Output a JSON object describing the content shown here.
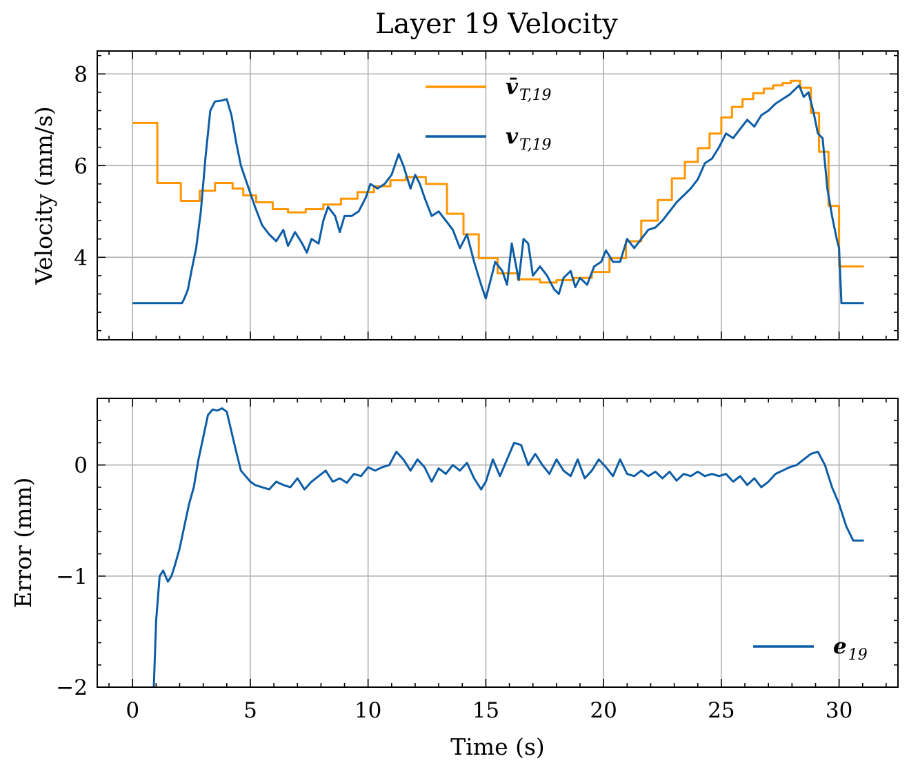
{
  "chart_data": [
    {
      "type": "line",
      "title": "Layer 19 Velocity",
      "xlabel": "",
      "ylabel": "Velocity (mm/s)",
      "xlim": [
        -1.5,
        32.5
      ],
      "ylim": [
        2.2,
        8.5
      ],
      "xticks": [
        0,
        5,
        10,
        15,
        20,
        25,
        30
      ],
      "yticks": [
        4,
        6,
        8
      ],
      "ytick_labels": [
        "4",
        "6",
        "8"
      ],
      "grid": true,
      "legend_position": "top-center",
      "series": [
        {
          "name": "v̄_{T,19}",
          "legend_main": "v̄",
          "legend_sub": "T,19",
          "color": "#ff9500",
          "style": "step",
          "x": [
            0,
            1.05,
            2.05,
            2.85,
            3.5,
            4.25,
            4.7,
            5.25,
            5.95,
            6.6,
            7.35,
            8.1,
            8.85,
            9.55,
            10.25,
            10.95,
            11.6,
            12.45,
            13.35,
            14.05,
            14.7,
            15.5,
            16.35,
            17.3,
            18.0,
            18.75,
            19.5,
            20.25,
            20.95,
            21.6,
            22.3,
            22.9,
            23.45,
            24.0,
            24.5,
            25.0,
            25.45,
            25.9,
            26.35,
            26.8,
            27.2,
            27.6,
            27.95,
            28.35,
            28.8,
            29.15,
            29.55,
            30.0,
            31.05
          ],
          "values": [
            6.93,
            5.62,
            5.23,
            5.45,
            5.62,
            5.5,
            5.35,
            5.2,
            5.05,
            4.98,
            5.05,
            5.15,
            5.28,
            5.42,
            5.55,
            5.68,
            5.75,
            5.6,
            4.95,
            4.5,
            3.98,
            3.65,
            3.52,
            3.45,
            3.5,
            3.55,
            3.68,
            3.98,
            4.35,
            4.8,
            5.25,
            5.72,
            6.08,
            6.38,
            6.7,
            7.05,
            7.28,
            7.45,
            7.58,
            7.68,
            7.75,
            7.8,
            7.85,
            7.7,
            7.15,
            6.3,
            5.12,
            3.8,
            3.8
          ]
        },
        {
          "name": "v_{T,19}",
          "legend_main": "v",
          "legend_sub": "T,19",
          "color": "#0c5da5",
          "style": "line",
          "x": [
            0,
            2.1,
            2.2,
            2.35,
            2.5,
            2.7,
            2.9,
            3.1,
            3.3,
            3.5,
            3.8,
            4.0,
            4.2,
            4.4,
            4.6,
            4.8,
            5.0,
            5.2,
            5.5,
            5.8,
            6.1,
            6.4,
            6.6,
            6.9,
            7.2,
            7.4,
            7.6,
            7.9,
            8.1,
            8.3,
            8.6,
            8.8,
            9.0,
            9.3,
            9.6,
            9.9,
            10.1,
            10.4,
            10.7,
            11.0,
            11.3,
            11.5,
            11.8,
            12.0,
            12.2,
            12.4,
            12.7,
            13.0,
            13.3,
            13.6,
            13.9,
            14.2,
            14.5,
            14.8,
            15.0,
            15.2,
            15.4,
            15.7,
            15.9,
            16.1,
            16.4,
            16.6,
            16.8,
            17.0,
            17.3,
            17.6,
            17.9,
            18.1,
            18.3,
            18.6,
            18.8,
            19.0,
            19.3,
            19.6,
            19.9,
            20.1,
            20.4,
            20.7,
            21.0,
            21.3,
            21.6,
            21.9,
            22.2,
            22.5,
            22.8,
            23.1,
            23.4,
            23.7,
            24.0,
            24.3,
            24.6,
            24.9,
            25.2,
            25.5,
            25.8,
            26.1,
            26.4,
            26.7,
            27.0,
            27.3,
            27.6,
            27.9,
            28.1,
            28.3,
            28.5,
            28.7,
            28.9,
            29.1,
            29.3,
            29.5,
            29.7,
            29.9,
            30.0,
            30.1,
            31.05
          ],
          "values": [
            3.0,
            3.0,
            3.1,
            3.3,
            3.7,
            4.2,
            5.0,
            6.2,
            7.2,
            7.4,
            7.42,
            7.45,
            7.1,
            6.5,
            6.0,
            5.7,
            5.4,
            5.1,
            4.7,
            4.5,
            4.35,
            4.6,
            4.25,
            4.55,
            4.3,
            4.1,
            4.4,
            4.3,
            4.8,
            5.1,
            4.9,
            4.55,
            4.9,
            4.9,
            5.0,
            5.3,
            5.6,
            5.5,
            5.6,
            5.8,
            6.25,
            6.0,
            5.5,
            5.8,
            5.6,
            5.3,
            4.9,
            5.0,
            4.8,
            4.6,
            4.2,
            4.5,
            3.9,
            3.4,
            3.1,
            3.5,
            3.9,
            3.7,
            3.4,
            4.3,
            3.5,
            4.4,
            4.3,
            3.6,
            3.8,
            3.6,
            3.3,
            3.2,
            3.55,
            3.7,
            3.35,
            3.55,
            3.4,
            3.8,
            3.9,
            4.15,
            3.9,
            3.9,
            4.4,
            4.2,
            4.4,
            4.6,
            4.65,
            4.8,
            5.0,
            5.2,
            5.35,
            5.5,
            5.7,
            6.05,
            6.15,
            6.4,
            6.7,
            6.6,
            6.8,
            7.0,
            6.85,
            7.1,
            7.2,
            7.35,
            7.45,
            7.55,
            7.65,
            7.75,
            7.5,
            7.6,
            7.2,
            6.7,
            6.6,
            5.5,
            4.9,
            4.4,
            4.2,
            3.0,
            3.0
          ]
        }
      ]
    },
    {
      "type": "line",
      "title": "",
      "xlabel": "Time (s)",
      "ylabel": "Error (mm)",
      "xlim": [
        -1.5,
        32.5
      ],
      "ylim": [
        -2.0,
        0.6
      ],
      "xticks": [
        0,
        5,
        10,
        15,
        20,
        25,
        30
      ],
      "xtick_labels": [
        "0",
        "5",
        "10",
        "15",
        "20",
        "25",
        "30"
      ],
      "yticks": [
        -2,
        -1,
        0
      ],
      "ytick_labels": [
        "−2",
        "−1",
        "0"
      ],
      "grid": true,
      "legend_position": "lower-right",
      "series": [
        {
          "name": "e_{19}",
          "legend_main": "e",
          "legend_sub": "19",
          "color": "#0c5da5",
          "style": "line",
          "x": [
            0.9,
            1.0,
            1.15,
            1.3,
            1.5,
            1.65,
            1.8,
            2.0,
            2.2,
            2.4,
            2.6,
            2.8,
            3.0,
            3.2,
            3.4,
            3.6,
            3.8,
            4.0,
            4.2,
            4.4,
            4.6,
            4.8,
            5.0,
            5.2,
            5.5,
            5.8,
            6.1,
            6.4,
            6.7,
            7.0,
            7.3,
            7.6,
            7.9,
            8.2,
            8.5,
            8.8,
            9.1,
            9.4,
            9.7,
            10.0,
            10.3,
            10.6,
            10.9,
            11.2,
            11.5,
            11.8,
            12.1,
            12.4,
            12.7,
            13.0,
            13.3,
            13.6,
            13.9,
            14.2,
            14.5,
            14.8,
            15.0,
            15.3,
            15.6,
            15.9,
            16.2,
            16.5,
            16.8,
            17.1,
            17.4,
            17.7,
            18.0,
            18.3,
            18.6,
            18.9,
            19.2,
            19.5,
            19.8,
            20.1,
            20.4,
            20.7,
            21.0,
            21.3,
            21.6,
            21.9,
            22.2,
            22.5,
            22.8,
            23.1,
            23.4,
            23.7,
            24.0,
            24.3,
            24.6,
            24.9,
            25.2,
            25.5,
            25.8,
            26.1,
            26.4,
            26.7,
            27.0,
            27.3,
            27.6,
            27.9,
            28.2,
            28.5,
            28.8,
            29.1,
            29.4,
            29.7,
            30.0,
            30.3,
            30.6,
            31.05
          ],
          "values": [
            -2.0,
            -1.4,
            -1.0,
            -0.95,
            -1.05,
            -1.0,
            -0.9,
            -0.75,
            -0.55,
            -0.35,
            -0.2,
            0.05,
            0.25,
            0.45,
            0.5,
            0.49,
            0.51,
            0.48,
            0.3,
            0.12,
            -0.05,
            -0.1,
            -0.15,
            -0.18,
            -0.2,
            -0.22,
            -0.15,
            -0.18,
            -0.2,
            -0.12,
            -0.22,
            -0.15,
            -0.1,
            -0.05,
            -0.15,
            -0.12,
            -0.16,
            -0.08,
            -0.1,
            -0.02,
            -0.05,
            -0.02,
            0.0,
            0.12,
            0.05,
            -0.05,
            0.05,
            -0.02,
            -0.15,
            -0.03,
            -0.08,
            0.0,
            -0.05,
            0.02,
            -0.12,
            -0.22,
            -0.15,
            0.05,
            -0.1,
            0.05,
            0.2,
            0.18,
            0.0,
            0.1,
            0.0,
            -0.08,
            0.05,
            -0.05,
            -0.1,
            0.05,
            -0.12,
            -0.05,
            0.05,
            -0.02,
            -0.1,
            0.05,
            -0.08,
            -0.1,
            -0.05,
            -0.1,
            -0.06,
            -0.12,
            -0.06,
            -0.14,
            -0.08,
            -0.1,
            -0.06,
            -0.1,
            -0.08,
            -0.1,
            -0.08,
            -0.15,
            -0.1,
            -0.18,
            -0.12,
            -0.2,
            -0.15,
            -0.08,
            -0.05,
            -0.02,
            0.0,
            0.05,
            0.1,
            0.12,
            0.0,
            -0.2,
            -0.35,
            -0.55,
            -0.68,
            -0.68
          ]
        }
      ]
    }
  ]
}
